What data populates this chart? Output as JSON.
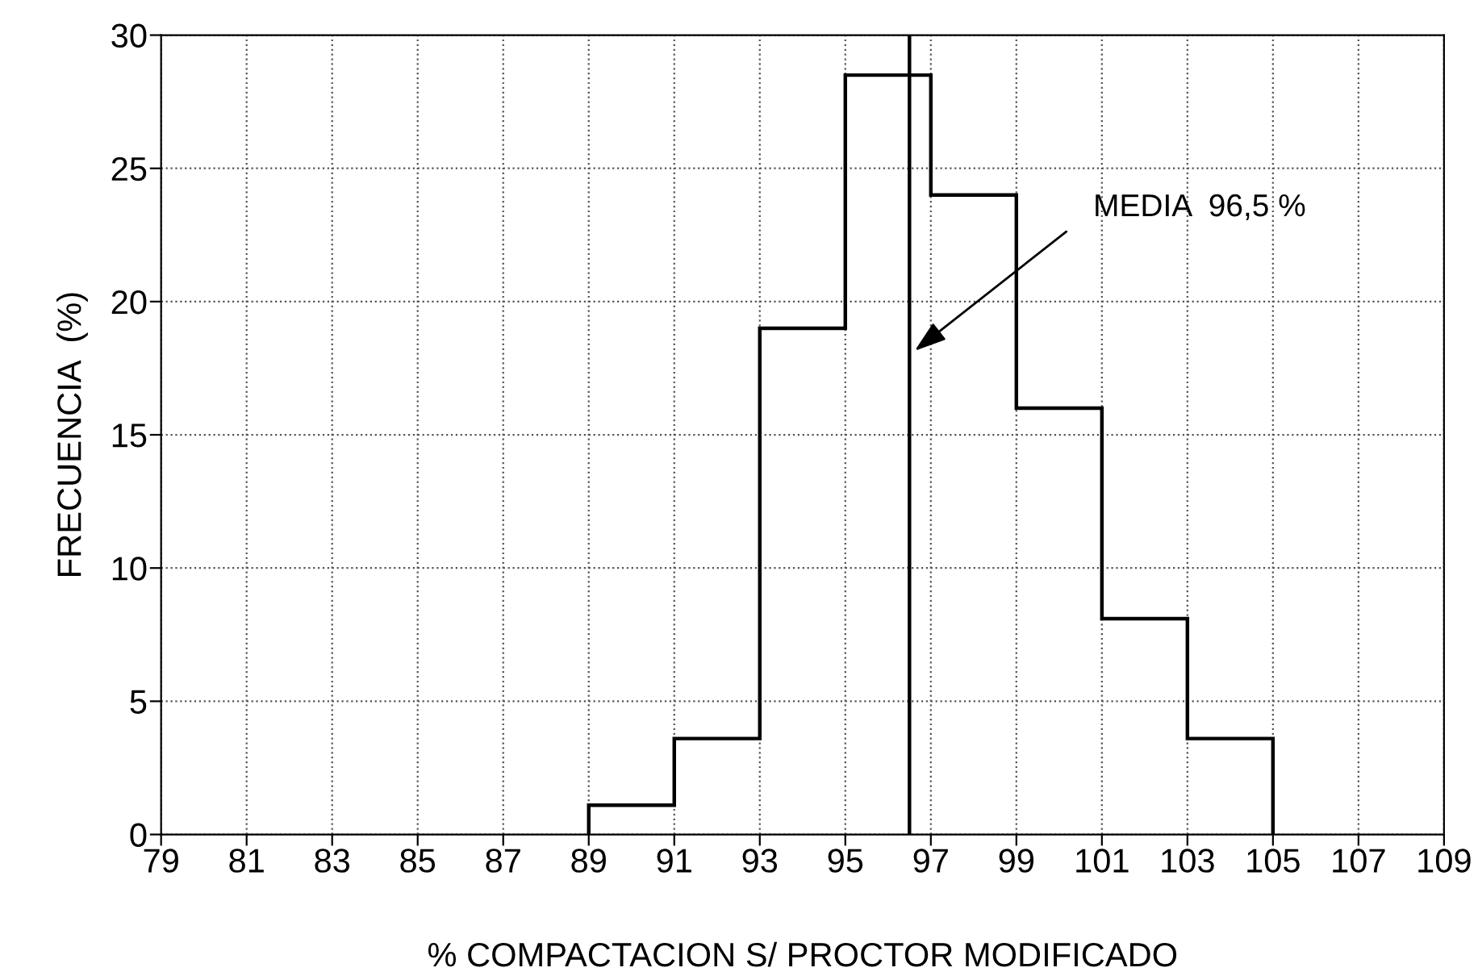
{
  "chart_data": {
    "type": "histogram",
    "xlabel": "% COMPACTACION S/ PROCTOR MODIFICADO",
    "ylabel": "FRECUENCIA  (%)",
    "bins": [
      89,
      91,
      93,
      95,
      97,
      99,
      101,
      103,
      105
    ],
    "values": [
      1.1,
      3.6,
      19.0,
      28.5,
      24.0,
      16.0,
      8.1,
      3.6
    ],
    "color": "#000000",
    "xlim": [
      79,
      109
    ],
    "xticks": [
      79,
      81,
      83,
      85,
      87,
      89,
      91,
      93,
      95,
      97,
      99,
      101,
      103,
      105,
      107,
      109
    ],
    "ylim": [
      0,
      30
    ],
    "yticks": [
      0,
      5,
      10,
      15,
      20,
      25,
      30
    ],
    "grid": true,
    "ref_lines": [
      {
        "axis": "x",
        "value": 96.5,
        "color": "#000000",
        "label": "MEDIA  96,5 %"
      }
    ]
  }
}
